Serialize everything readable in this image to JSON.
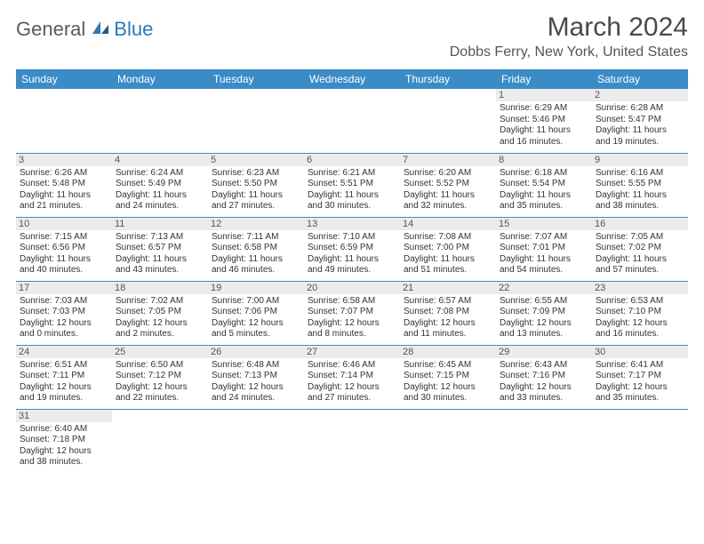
{
  "brand": {
    "part1": "General",
    "part2": "Blue",
    "iconColor": "#2a7ab8"
  },
  "title": "March 2024",
  "location": "Dobbs Ferry, New York, United States",
  "colors": {
    "headerBg": "#3b8bc6",
    "headerText": "#ffffff",
    "dayBg": "#ececec",
    "border": "#3b8bc6"
  },
  "dayHeaders": [
    "Sunday",
    "Monday",
    "Tuesday",
    "Wednesday",
    "Thursday",
    "Friday",
    "Saturday"
  ],
  "weeks": [
    [
      {
        "n": "",
        "sr": "",
        "ss": "",
        "d1": "",
        "d2": ""
      },
      {
        "n": "",
        "sr": "",
        "ss": "",
        "d1": "",
        "d2": ""
      },
      {
        "n": "",
        "sr": "",
        "ss": "",
        "d1": "",
        "d2": ""
      },
      {
        "n": "",
        "sr": "",
        "ss": "",
        "d1": "",
        "d2": ""
      },
      {
        "n": "",
        "sr": "",
        "ss": "",
        "d1": "",
        "d2": ""
      },
      {
        "n": "1",
        "sr": "Sunrise: 6:29 AM",
        "ss": "Sunset: 5:46 PM",
        "d1": "Daylight: 11 hours",
        "d2": "and 16 minutes."
      },
      {
        "n": "2",
        "sr": "Sunrise: 6:28 AM",
        "ss": "Sunset: 5:47 PM",
        "d1": "Daylight: 11 hours",
        "d2": "and 19 minutes."
      }
    ],
    [
      {
        "n": "3",
        "sr": "Sunrise: 6:26 AM",
        "ss": "Sunset: 5:48 PM",
        "d1": "Daylight: 11 hours",
        "d2": "and 21 minutes."
      },
      {
        "n": "4",
        "sr": "Sunrise: 6:24 AM",
        "ss": "Sunset: 5:49 PM",
        "d1": "Daylight: 11 hours",
        "d2": "and 24 minutes."
      },
      {
        "n": "5",
        "sr": "Sunrise: 6:23 AM",
        "ss": "Sunset: 5:50 PM",
        "d1": "Daylight: 11 hours",
        "d2": "and 27 minutes."
      },
      {
        "n": "6",
        "sr": "Sunrise: 6:21 AM",
        "ss": "Sunset: 5:51 PM",
        "d1": "Daylight: 11 hours",
        "d2": "and 30 minutes."
      },
      {
        "n": "7",
        "sr": "Sunrise: 6:20 AM",
        "ss": "Sunset: 5:52 PM",
        "d1": "Daylight: 11 hours",
        "d2": "and 32 minutes."
      },
      {
        "n": "8",
        "sr": "Sunrise: 6:18 AM",
        "ss": "Sunset: 5:54 PM",
        "d1": "Daylight: 11 hours",
        "d2": "and 35 minutes."
      },
      {
        "n": "9",
        "sr": "Sunrise: 6:16 AM",
        "ss": "Sunset: 5:55 PM",
        "d1": "Daylight: 11 hours",
        "d2": "and 38 minutes."
      }
    ],
    [
      {
        "n": "10",
        "sr": "Sunrise: 7:15 AM",
        "ss": "Sunset: 6:56 PM",
        "d1": "Daylight: 11 hours",
        "d2": "and 40 minutes."
      },
      {
        "n": "11",
        "sr": "Sunrise: 7:13 AM",
        "ss": "Sunset: 6:57 PM",
        "d1": "Daylight: 11 hours",
        "d2": "and 43 minutes."
      },
      {
        "n": "12",
        "sr": "Sunrise: 7:11 AM",
        "ss": "Sunset: 6:58 PM",
        "d1": "Daylight: 11 hours",
        "d2": "and 46 minutes."
      },
      {
        "n": "13",
        "sr": "Sunrise: 7:10 AM",
        "ss": "Sunset: 6:59 PM",
        "d1": "Daylight: 11 hours",
        "d2": "and 49 minutes."
      },
      {
        "n": "14",
        "sr": "Sunrise: 7:08 AM",
        "ss": "Sunset: 7:00 PM",
        "d1": "Daylight: 11 hours",
        "d2": "and 51 minutes."
      },
      {
        "n": "15",
        "sr": "Sunrise: 7:07 AM",
        "ss": "Sunset: 7:01 PM",
        "d1": "Daylight: 11 hours",
        "d2": "and 54 minutes."
      },
      {
        "n": "16",
        "sr": "Sunrise: 7:05 AM",
        "ss": "Sunset: 7:02 PM",
        "d1": "Daylight: 11 hours",
        "d2": "and 57 minutes."
      }
    ],
    [
      {
        "n": "17",
        "sr": "Sunrise: 7:03 AM",
        "ss": "Sunset: 7:03 PM",
        "d1": "Daylight: 12 hours",
        "d2": "and 0 minutes."
      },
      {
        "n": "18",
        "sr": "Sunrise: 7:02 AM",
        "ss": "Sunset: 7:05 PM",
        "d1": "Daylight: 12 hours",
        "d2": "and 2 minutes."
      },
      {
        "n": "19",
        "sr": "Sunrise: 7:00 AM",
        "ss": "Sunset: 7:06 PM",
        "d1": "Daylight: 12 hours",
        "d2": "and 5 minutes."
      },
      {
        "n": "20",
        "sr": "Sunrise: 6:58 AM",
        "ss": "Sunset: 7:07 PM",
        "d1": "Daylight: 12 hours",
        "d2": "and 8 minutes."
      },
      {
        "n": "21",
        "sr": "Sunrise: 6:57 AM",
        "ss": "Sunset: 7:08 PM",
        "d1": "Daylight: 12 hours",
        "d2": "and 11 minutes."
      },
      {
        "n": "22",
        "sr": "Sunrise: 6:55 AM",
        "ss": "Sunset: 7:09 PM",
        "d1": "Daylight: 12 hours",
        "d2": "and 13 minutes."
      },
      {
        "n": "23",
        "sr": "Sunrise: 6:53 AM",
        "ss": "Sunset: 7:10 PM",
        "d1": "Daylight: 12 hours",
        "d2": "and 16 minutes."
      }
    ],
    [
      {
        "n": "24",
        "sr": "Sunrise: 6:51 AM",
        "ss": "Sunset: 7:11 PM",
        "d1": "Daylight: 12 hours",
        "d2": "and 19 minutes."
      },
      {
        "n": "25",
        "sr": "Sunrise: 6:50 AM",
        "ss": "Sunset: 7:12 PM",
        "d1": "Daylight: 12 hours",
        "d2": "and 22 minutes."
      },
      {
        "n": "26",
        "sr": "Sunrise: 6:48 AM",
        "ss": "Sunset: 7:13 PM",
        "d1": "Daylight: 12 hours",
        "d2": "and 24 minutes."
      },
      {
        "n": "27",
        "sr": "Sunrise: 6:46 AM",
        "ss": "Sunset: 7:14 PM",
        "d1": "Daylight: 12 hours",
        "d2": "and 27 minutes."
      },
      {
        "n": "28",
        "sr": "Sunrise: 6:45 AM",
        "ss": "Sunset: 7:15 PM",
        "d1": "Daylight: 12 hours",
        "d2": "and 30 minutes."
      },
      {
        "n": "29",
        "sr": "Sunrise: 6:43 AM",
        "ss": "Sunset: 7:16 PM",
        "d1": "Daylight: 12 hours",
        "d2": "and 33 minutes."
      },
      {
        "n": "30",
        "sr": "Sunrise: 6:41 AM",
        "ss": "Sunset: 7:17 PM",
        "d1": "Daylight: 12 hours",
        "d2": "and 35 minutes."
      }
    ],
    [
      {
        "n": "31",
        "sr": "Sunrise: 6:40 AM",
        "ss": "Sunset: 7:18 PM",
        "d1": "Daylight: 12 hours",
        "d2": "and 38 minutes."
      },
      {
        "n": "",
        "sr": "",
        "ss": "",
        "d1": "",
        "d2": ""
      },
      {
        "n": "",
        "sr": "",
        "ss": "",
        "d1": "",
        "d2": ""
      },
      {
        "n": "",
        "sr": "",
        "ss": "",
        "d1": "",
        "d2": ""
      },
      {
        "n": "",
        "sr": "",
        "ss": "",
        "d1": "",
        "d2": ""
      },
      {
        "n": "",
        "sr": "",
        "ss": "",
        "d1": "",
        "d2": ""
      },
      {
        "n": "",
        "sr": "",
        "ss": "",
        "d1": "",
        "d2": ""
      }
    ]
  ]
}
